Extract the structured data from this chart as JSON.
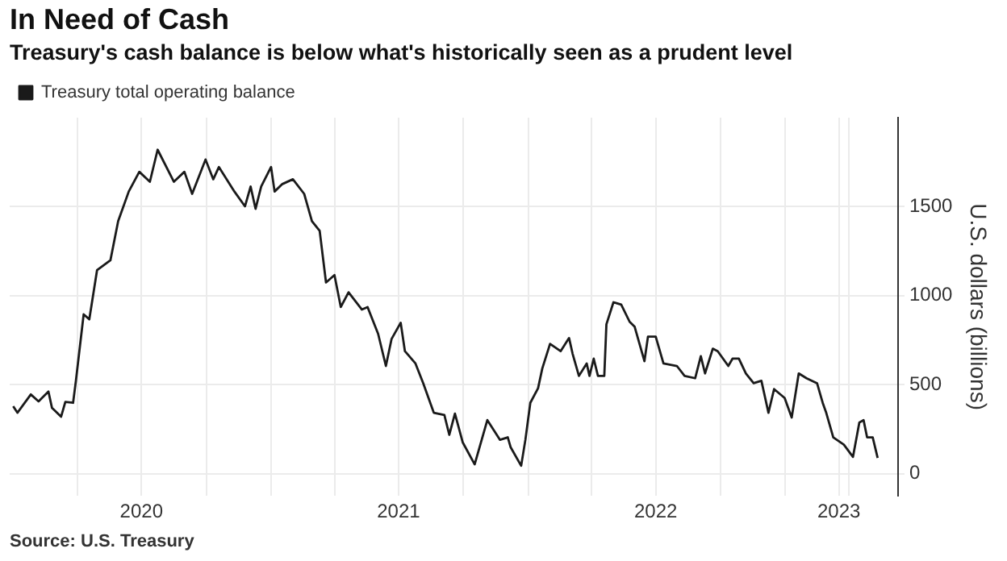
{
  "chart_data": {
    "type": "line",
    "title": "In Need of Cash",
    "subtitle": "Treasury's cash balance is below what's historically seen as a prudent level",
    "ylabel": "U.S. dollars (billions)",
    "annotations": [
      "Source: U.S. Treasury"
    ],
    "x": [
      "2020-01-01",
      "2020-01-07",
      "2020-01-26",
      "2020-02-06",
      "2020-02-20",
      "2020-02-25",
      "2020-03-09",
      "2020-03-15",
      "2020-03-26",
      "2020-03-30",
      "2020-04-10",
      "2020-04-18",
      "2020-04-29",
      "2020-05-18",
      "2020-05-29",
      "2020-06-13",
      "2020-06-28",
      "2020-07-13",
      "2020-07-24",
      "2020-08-16",
      "2020-08-31",
      "2020-09-11",
      "2020-09-30",
      "2020-10-11",
      "2020-10-19",
      "2020-11-10",
      "2020-11-25",
      "2020-12-03",
      "2020-12-10",
      "2020-12-18",
      "2021-01-01",
      "2021-01-06",
      "2021-01-17",
      "2021-02-01",
      "2021-02-17",
      "2021-02-28",
      "2021-03-11",
      "2021-03-20",
      "2021-04-01",
      "2021-04-10",
      "2021-04-21",
      "2021-05-10",
      "2021-05-18",
      "2021-06-02",
      "2021-06-13",
      "2021-06-21",
      "2021-07-04",
      "2021-07-10",
      "2021-07-25",
      "2021-08-05",
      "2021-08-20",
      "2021-09-04",
      "2021-09-11",
      "2021-09-19",
      "2021-09-30",
      "2021-10-17",
      "2021-11-04",
      "2021-11-22",
      "2021-12-03",
      "2021-12-07",
      "2021-12-22",
      "2021-12-28",
      "2022-01-04",
      "2022-01-15",
      "2022-01-21",
      "2022-02-01",
      "2022-02-16",
      "2022-02-28",
      "2022-03-05",
      "2022-03-14",
      "2022-03-25",
      "2022-03-29",
      "2022-04-04",
      "2022-04-10",
      "2022-04-19",
      "2022-04-22",
      "2022-05-02",
      "2022-05-13",
      "2022-05-25",
      "2022-06-01",
      "2022-06-15",
      "2022-06-20",
      "2022-07-01",
      "2022-07-12",
      "2022-07-31",
      "2022-08-11",
      "2022-08-26",
      "2022-09-03",
      "2022-09-09",
      "2022-09-20",
      "2022-09-27",
      "2022-10-12",
      "2022-10-18",
      "2022-10-27",
      "2022-11-06",
      "2022-11-17",
      "2022-11-28",
      "2022-12-08",
      "2022-12-16",
      "2022-12-31",
      "2023-01-10",
      "2023-01-20",
      "2023-01-31",
      "2023-02-15",
      "2023-02-23",
      "2023-02-28",
      "2023-03-10",
      "2023-03-25",
      "2023-04-07",
      "2023-04-16",
      "2023-04-22",
      "2023-04-27",
      "2023-05-05",
      "2023-05-12"
    ],
    "series": [
      {
        "name": "Treasury total operating balance",
        "color": "#1a1a1a",
        "values": [
          379,
          342,
          445,
          406,
          461,
          370,
          320,
          403,
          398,
          522,
          895,
          867,
          1143,
          1199,
          1419,
          1585,
          1696,
          1640,
          1820,
          1640,
          1696,
          1572,
          1765,
          1654,
          1723,
          1585,
          1502,
          1613,
          1488,
          1613,
          1723,
          1585,
          1627,
          1654,
          1572,
          1419,
          1364,
          1074,
          1116,
          936,
          1019,
          922,
          936,
          785,
          605,
          756,
          848,
          688,
          619,
          508,
          342,
          329,
          218,
          337,
          176,
          52,
          301,
          190,
          204,
          149,
          44,
          190,
          398,
          480,
          591,
          729,
          688,
          762,
          674,
          549,
          619,
          549,
          646,
          549,
          549,
          839,
          963,
          950,
          853,
          826,
          632,
          770,
          770,
          619,
          605,
          549,
          536,
          660,
          563,
          702,
          688,
          605,
          646,
          646,
          563,
          508,
          522,
          342,
          475,
          425,
          315,
          563,
          536,
          508,
          398,
          342,
          204,
          163,
          94,
          287,
          301,
          204,
          204,
          88
        ]
      }
    ],
    "xlim": [
      "2019-12-27",
      "2023-06-10"
    ],
    "xticks": [
      {
        "value": "2020-04-01",
        "label": null
      },
      {
        "value": "2020-07-01",
        "label": "2020"
      },
      {
        "value": "2020-10-01",
        "label": null
      },
      {
        "value": "2021-01-01",
        "label": null
      },
      {
        "value": "2021-04-01",
        "label": null
      },
      {
        "value": "2021-07-01",
        "label": "2021"
      },
      {
        "value": "2021-10-01",
        "label": null
      },
      {
        "value": "2022-01-01",
        "label": null
      },
      {
        "value": "2022-04-01",
        "label": null
      },
      {
        "value": "2022-07-01",
        "label": "2022"
      },
      {
        "value": "2022-10-01",
        "label": null
      },
      {
        "value": "2023-01-01",
        "label": null
      },
      {
        "value": "2023-03-18",
        "label": "2023"
      },
      {
        "value": "2023-04-01",
        "label": null
      }
    ],
    "ylim": [
      -125,
      2000
    ],
    "yticks": [
      0,
      500,
      1000,
      1500
    ],
    "grid": true,
    "legend": "top left",
    "line_style": "solid",
    "marker": "none"
  }
}
